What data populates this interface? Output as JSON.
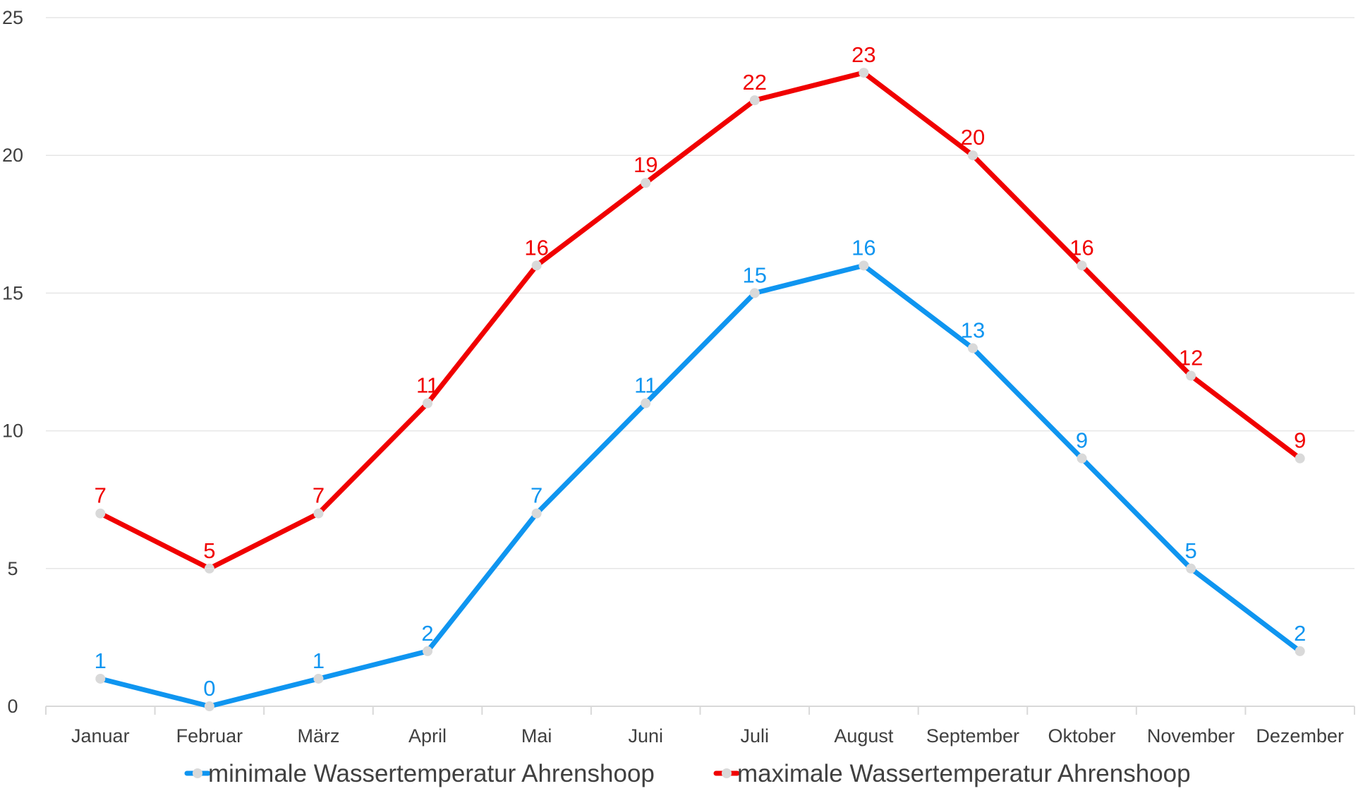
{
  "chart_data": {
    "type": "line",
    "categories": [
      "Januar",
      "Februar",
      "März",
      "April",
      "Mai",
      "Juni",
      "Juli",
      "August",
      "September",
      "Oktober",
      "November",
      "Dezember"
    ],
    "series": [
      {
        "name": "minimale Wassertemperatur Ahrenshoop",
        "color": "#0f95f0",
        "values": [
          1,
          0,
          1,
          2,
          7,
          11,
          15,
          16,
          13,
          9,
          5,
          2
        ]
      },
      {
        "name": "maximale Wassertemperatur Ahrenshoop",
        "color": "#f00000",
        "values": [
          7,
          5,
          7,
          11,
          16,
          19,
          22,
          23,
          20,
          16,
          12,
          9
        ]
      }
    ],
    "y_ticks": [
      0,
      5,
      10,
      15,
      20,
      25
    ],
    "ylim": [
      0,
      25
    ],
    "title": "",
    "xlabel": "",
    "ylabel": "",
    "grid": true,
    "data_labels": true,
    "legend_position": "bottom",
    "marker_color": "#d9d9d9"
  }
}
